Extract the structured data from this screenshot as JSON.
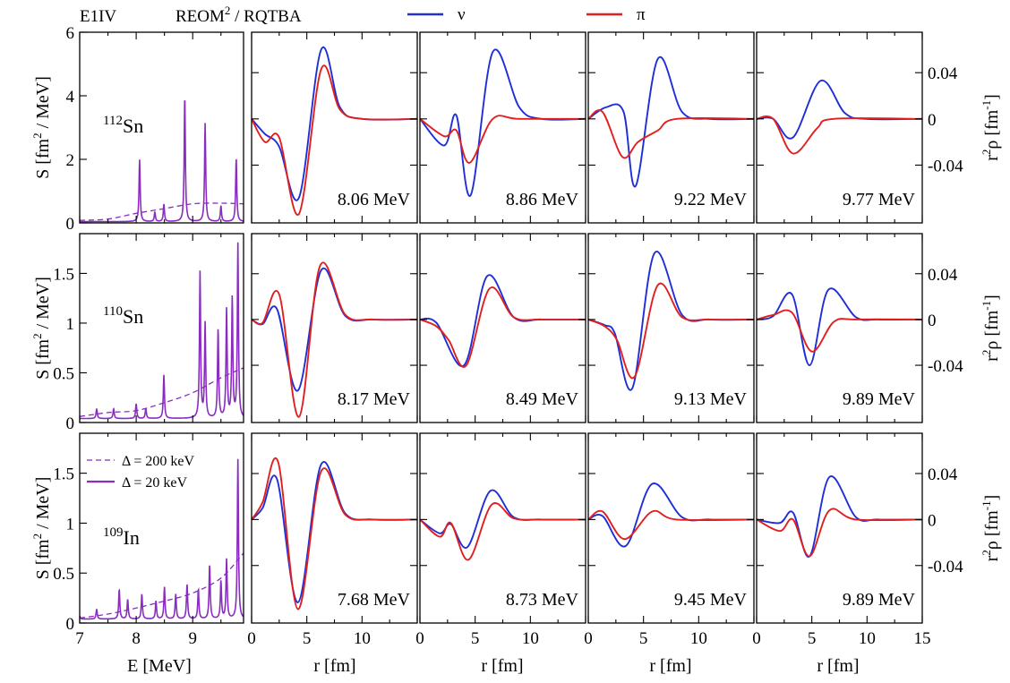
{
  "header": {
    "method": "E1IV",
    "model_main": "REOM",
    "model_sup": "2",
    "model_rest": " / RQTBA",
    "legend_nu": "ν",
    "legend_pi": "π",
    "color_nu": "#1f2fd8",
    "color_pi": "#e02020",
    "color_strength": "#8a2cc0"
  },
  "axes_text": {
    "strength_ylabel_main": "S [fm",
    "strength_ylabel_sup": "2",
    "strength_ylabel_rest": " / MeV]",
    "strength_xlabel": "E [MeV]",
    "r_xlabel": "r [fm]",
    "density_ylabel_main": "r",
    "density_ylabel_sup1": "2",
    "density_ylabel_mid": "ρ [fm",
    "density_ylabel_sup2": "-1",
    "density_ylabel_rest": "]"
  },
  "strength_legend": {
    "dashed": "Δ = 200 keV",
    "solid": "Δ = 20 keV"
  },
  "strength_xticks": [
    "7",
    "8",
    "9"
  ],
  "r_xticks": [
    "0",
    "5",
    "10"
  ],
  "r_xticks_last": [
    "0",
    "5",
    "10",
    "15"
  ],
  "density_yticks": [
    "0.04",
    "0",
    "-0.04"
  ],
  "chart_data": [
    {
      "type": "line",
      "nucleus_mass": "112",
      "nucleus_symbol": "Sn",
      "xlim": [
        7,
        9.9
      ],
      "ylim": [
        0,
        6
      ],
      "yticks": [
        "0",
        "2",
        "4",
        "6"
      ],
      "peaks_20keV": [
        [
          8.06,
          1.95
        ],
        [
          8.33,
          0.3
        ],
        [
          8.49,
          0.55
        ],
        [
          8.86,
          4.0
        ],
        [
          9.22,
          3.1
        ],
        [
          9.5,
          0.5
        ],
        [
          9.77,
          2.0
        ]
      ],
      "smooth_200keV": [
        [
          7.0,
          0.08
        ],
        [
          7.5,
          0.12
        ],
        [
          8.0,
          0.3
        ],
        [
          8.5,
          0.45
        ],
        [
          9.0,
          0.6
        ],
        [
          9.5,
          0.62
        ],
        [
          9.9,
          0.6
        ]
      ],
      "transition_panels": [
        {
          "energy": "8.06 MeV",
          "nu": [
            [
              0,
              0
            ],
            [
              1.2,
              -0.013
            ],
            [
              2.5,
              -0.024
            ],
            [
              4.3,
              -0.068
            ],
            [
              6.3,
              0.06
            ],
            [
              8,
              0.01
            ],
            [
              10,
              0
            ],
            [
              15,
              0
            ]
          ],
          "pi": [
            [
              0,
              0
            ],
            [
              1.2,
              -0.02
            ],
            [
              2.5,
              -0.016
            ],
            [
              4.3,
              -0.082
            ],
            [
              6.3,
              0.043
            ],
            [
              8,
              0.008
            ],
            [
              10,
              0
            ],
            [
              15,
              0
            ]
          ]
        },
        {
          "energy": "8.86 MeV",
          "nu": [
            [
              0,
              0
            ],
            [
              2.2,
              -0.023
            ],
            [
              3.3,
              0.003
            ],
            [
              4.6,
              -0.066
            ],
            [
              6.6,
              0.058
            ],
            [
              9,
              0.01
            ],
            [
              11,
              0
            ],
            [
              15,
              0
            ]
          ],
          "pi": [
            [
              0,
              0
            ],
            [
              2.2,
              -0.015
            ],
            [
              3.3,
              -0.01
            ],
            [
              4.5,
              -0.038
            ],
            [
              6.6,
              0.0
            ],
            [
              9,
              0
            ],
            [
              15,
              0
            ]
          ]
        },
        {
          "energy": "9.22 MeV",
          "nu": [
            [
              0,
              0
            ],
            [
              1.6,
              0.01
            ],
            [
              3.2,
              0.006
            ],
            [
              4.3,
              -0.058
            ],
            [
              6.3,
              0.052
            ],
            [
              8.5,
              0.006
            ],
            [
              11,
              0
            ],
            [
              15,
              0
            ]
          ],
          "pi": [
            [
              0,
              0
            ],
            [
              1.3,
              0.006
            ],
            [
              3.1,
              -0.033
            ],
            [
              4.5,
              -0.02
            ],
            [
              6.3,
              -0.01
            ],
            [
              8,
              0
            ],
            [
              15,
              0
            ]
          ]
        },
        {
          "energy": "9.77 MeV",
          "nu": [
            [
              0,
              0
            ],
            [
              1.5,
              0
            ],
            [
              3.3,
              -0.016
            ],
            [
              5.8,
              0.033
            ],
            [
              8,
              0.005
            ],
            [
              10,
              0
            ],
            [
              15,
              0
            ]
          ],
          "pi": [
            [
              0,
              0
            ],
            [
              1.5,
              0
            ],
            [
              3.3,
              -0.03
            ],
            [
              5.5,
              -0.008
            ],
            [
              7,
              0
            ],
            [
              15,
              0
            ]
          ]
        }
      ]
    },
    {
      "type": "line",
      "nucleus_mass": "110",
      "nucleus_symbol": "Sn",
      "xlim": [
        7,
        9.9
      ],
      "ylim": [
        0,
        1.9
      ],
      "yticks": [
        "0",
        "0.5",
        "1",
        "1.5"
      ],
      "peaks_20keV": [
        [
          7.3,
          0.1
        ],
        [
          7.6,
          0.1
        ],
        [
          8.0,
          0.15
        ],
        [
          8.17,
          0.1
        ],
        [
          8.49,
          0.44
        ],
        [
          9.13,
          1.47
        ],
        [
          9.22,
          0.95
        ],
        [
          9.45,
          0.9
        ],
        [
          9.6,
          1.1
        ],
        [
          9.7,
          1.2
        ],
        [
          9.8,
          1.75
        ]
      ],
      "smooth_200keV": [
        [
          7.0,
          0.06
        ],
        [
          7.5,
          0.1
        ],
        [
          8.0,
          0.12
        ],
        [
          8.5,
          0.2
        ],
        [
          9.0,
          0.3
        ],
        [
          9.5,
          0.45
        ],
        [
          9.9,
          0.55
        ]
      ],
      "transition_panels": [
        {
          "energy": "8.17 MeV",
          "nu": [
            [
              0,
              0
            ],
            [
              1.0,
              -0.004
            ],
            [
              2.3,
              0.009
            ],
            [
              4.2,
              -0.062
            ],
            [
              6.3,
              0.043
            ],
            [
              8.5,
              0.003
            ],
            [
              11,
              0
            ],
            [
              15,
              0
            ]
          ],
          "pi": [
            [
              0,
              0
            ],
            [
              1.0,
              -0.003
            ],
            [
              2.5,
              0.022
            ],
            [
              4.3,
              -0.085
            ],
            [
              6.2,
              0.047
            ],
            [
              8.5,
              0.004
            ],
            [
              11,
              0
            ],
            [
              15,
              0
            ]
          ]
        },
        {
          "energy": "8.49 MeV",
          "nu": [
            [
              0,
              0
            ],
            [
              1.5,
              -0.003
            ],
            [
              4.0,
              -0.04
            ],
            [
              6.1,
              0.038
            ],
            [
              8.5,
              0.002
            ],
            [
              11,
              0
            ],
            [
              15,
              0
            ]
          ],
          "pi": [
            [
              0,
              0
            ],
            [
              1.5,
              -0.006
            ],
            [
              2.6,
              -0.018
            ],
            [
              4.2,
              -0.04
            ],
            [
              6.3,
              0.027
            ],
            [
              8.5,
              0.002
            ],
            [
              11,
              0
            ],
            [
              15,
              0
            ]
          ]
        },
        {
          "energy": "9.13 MeV",
          "nu": [
            [
              0,
              0
            ],
            [
              1.5,
              -0.005
            ],
            [
              2.4,
              -0.012
            ],
            [
              4.0,
              -0.06
            ],
            [
              6.0,
              0.058
            ],
            [
              8.5,
              0.004
            ],
            [
              11,
              0
            ],
            [
              15,
              0
            ]
          ],
          "pi": [
            [
              0,
              0
            ],
            [
              1.5,
              -0.006
            ],
            [
              2.6,
              -0.018
            ],
            [
              4.2,
              -0.05
            ],
            [
              6.3,
              0.03
            ],
            [
              8.5,
              0.002
            ],
            [
              11,
              0
            ],
            [
              15,
              0
            ]
          ]
        },
        {
          "energy": "9.89 MeV",
          "nu": [
            [
              0,
              0
            ],
            [
              1.5,
              0.003
            ],
            [
              3.2,
              0.022
            ],
            [
              4.8,
              -0.04
            ],
            [
              6.5,
              0.026
            ],
            [
              9,
              0.002
            ],
            [
              11,
              0
            ],
            [
              15,
              0
            ]
          ],
          "pi": [
            [
              0,
              0
            ],
            [
              1.5,
              0.004
            ],
            [
              3.2,
              0.006
            ],
            [
              5.0,
              -0.028
            ],
            [
              7,
              -0.002
            ],
            [
              9,
              0
            ],
            [
              15,
              0
            ]
          ]
        }
      ]
    },
    {
      "type": "line",
      "nucleus_mass": "109",
      "nucleus_symbol": "In",
      "xlim": [
        7,
        9.9
      ],
      "ylim": [
        0,
        1.9
      ],
      "yticks": [
        "0",
        "0.5",
        "1",
        "1.5"
      ],
      "peaks_20keV": [
        [
          7.0,
          0.03
        ],
        [
          7.3,
          0.1
        ],
        [
          7.7,
          0.3
        ],
        [
          7.85,
          0.2
        ],
        [
          8.1,
          0.25
        ],
        [
          8.35,
          0.18
        ],
        [
          8.5,
          0.32
        ],
        [
          8.7,
          0.25
        ],
        [
          8.9,
          0.35
        ],
        [
          9.1,
          0.3
        ],
        [
          9.3,
          0.55
        ],
        [
          9.5,
          0.38
        ],
        [
          9.6,
          0.6
        ],
        [
          9.8,
          1.6
        ]
      ],
      "smooth_200keV": [
        [
          7.0,
          0.05
        ],
        [
          7.5,
          0.09
        ],
        [
          8.0,
          0.15
        ],
        [
          8.5,
          0.22
        ],
        [
          9.0,
          0.3
        ],
        [
          9.5,
          0.45
        ],
        [
          9.9,
          0.7
        ]
      ],
      "transition_panels": [
        {
          "energy": "7.68 MeV",
          "nu": [
            [
              0,
              0
            ],
            [
              1.0,
              0.01
            ],
            [
              2.3,
              0.035
            ],
            [
              4.2,
              -0.072
            ],
            [
              6.3,
              0.048
            ],
            [
              8.5,
              0.005
            ],
            [
              11,
              0
            ],
            [
              15,
              0
            ]
          ],
          "pi": [
            [
              0,
              0
            ],
            [
              1.0,
              0.015
            ],
            [
              2.4,
              0.05
            ],
            [
              4.2,
              -0.078
            ],
            [
              6.3,
              0.042
            ],
            [
              8.5,
              0.004
            ],
            [
              11,
              0
            ],
            [
              15,
              0
            ]
          ]
        },
        {
          "energy": "8.73 MeV",
          "nu": [
            [
              0,
              0
            ],
            [
              1.8,
              -0.012
            ],
            [
              2.8,
              -0.004
            ],
            [
              4.3,
              -0.024
            ],
            [
              6.4,
              0.025
            ],
            [
              8.5,
              0.002
            ],
            [
              11,
              0
            ],
            [
              15,
              0
            ]
          ],
          "pi": [
            [
              0,
              0
            ],
            [
              1.8,
              -0.015
            ],
            [
              2.8,
              -0.003
            ],
            [
              4.4,
              -0.035
            ],
            [
              6.5,
              0.013
            ],
            [
              8.5,
              0.001
            ],
            [
              11,
              0
            ],
            [
              15,
              0
            ]
          ]
        },
        {
          "energy": "9.45 MeV",
          "nu": [
            [
              0,
              0
            ],
            [
              1.3,
              0.003
            ],
            [
              3.4,
              -0.023
            ],
            [
              5.8,
              0.031
            ],
            [
              8.5,
              0.002
            ],
            [
              11,
              0
            ],
            [
              15,
              0
            ]
          ],
          "pi": [
            [
              0,
              0
            ],
            [
              1.3,
              0.007
            ],
            [
              3.3,
              -0.017
            ],
            [
              5.8,
              0.007
            ],
            [
              8,
              0
            ],
            [
              15,
              0
            ]
          ]
        },
        {
          "energy": "9.89 MeV",
          "nu": [
            [
              0,
              0
            ],
            [
              2.1,
              -0.003
            ],
            [
              3.3,
              0.006
            ],
            [
              4.8,
              -0.032
            ],
            [
              6.6,
              0.037
            ],
            [
              9,
              0.002
            ],
            [
              11,
              0
            ],
            [
              15,
              0
            ]
          ],
          "pi": [
            [
              0,
              0
            ],
            [
              2.1,
              -0.01
            ],
            [
              3.3,
              0.0
            ],
            [
              4.8,
              -0.032
            ],
            [
              6.6,
              0.008
            ],
            [
              9,
              0
            ],
            [
              15,
              0
            ]
          ]
        }
      ]
    }
  ]
}
